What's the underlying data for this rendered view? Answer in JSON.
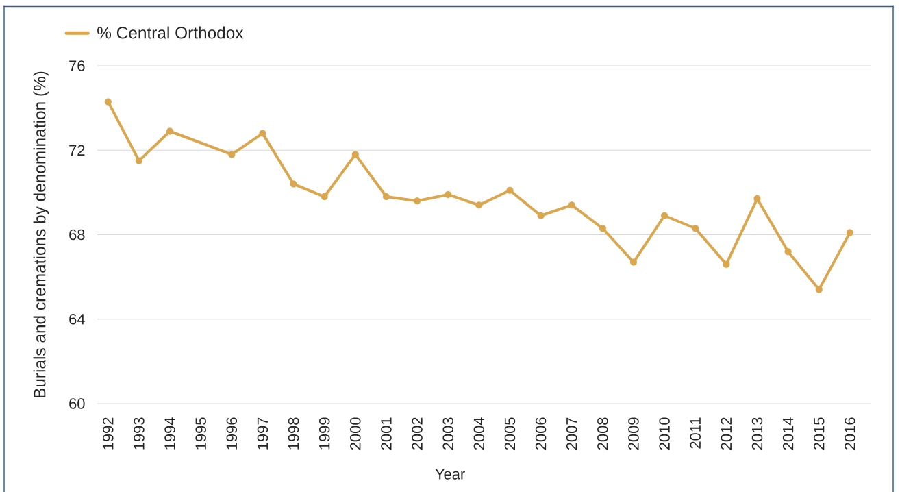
{
  "chart_data": {
    "type": "line",
    "xlabel": "Year",
    "ylabel": "Burials and cremations by denomination (%)",
    "categories": [
      "1992",
      "1993",
      "1994",
      "1995",
      "1996",
      "1997",
      "1998",
      "1999",
      "2000",
      "2001",
      "2002",
      "2003",
      "2004",
      "2005",
      "2006",
      "2007",
      "2008",
      "2009",
      "2010",
      "2011",
      "2012",
      "2013",
      "2014",
      "2015",
      "2016"
    ],
    "series": [
      {
        "name": "% Central Orthodox",
        "color": "#daa64e",
        "values": [
          74.3,
          71.5,
          72.9,
          null,
          71.8,
          72.8,
          70.4,
          69.8,
          71.8,
          69.8,
          69.6,
          69.9,
          69.4,
          70.1,
          68.9,
          69.4,
          68.3,
          66.7,
          68.9,
          68.3,
          66.6,
          69.7,
          67.2,
          65.4,
          68.1
        ]
      }
    ],
    "ylim": [
      60,
      76
    ],
    "yticks": [
      60,
      64,
      68,
      72,
      76
    ],
    "grid": "y",
    "legend": "top left",
    "marker": "circle",
    "line_style": "solid"
  }
}
